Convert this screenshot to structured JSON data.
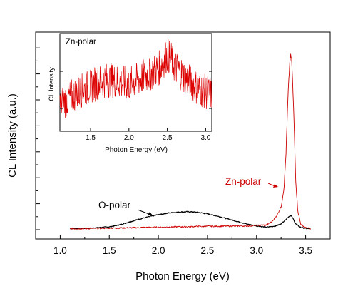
{
  "chart_data": [
    {
      "panel": "main",
      "type": "line",
      "xlabel": "Photon Energy (eV)",
      "ylabel": "CL Intensity (a.u.)",
      "xlim": [
        0.75,
        3.75
      ],
      "ylim": [
        0,
        1.0
      ],
      "x_ticks": [
        1.0,
        1.5,
        2.0,
        2.5,
        3.0,
        3.5
      ],
      "x_tick_labels": [
        "1.0",
        "1.5",
        "2.0",
        "2.5",
        "3.0",
        "3.5"
      ],
      "y_tick_labels_shown": false,
      "grid": false,
      "annotations": [
        {
          "text": "O-polar",
          "color": "#000000",
          "arrow_to": [
            2.2,
            0.055
          ]
        },
        {
          "text": "Zn-polar",
          "color": "#cc0000",
          "arrow_to": [
            3.25,
            0.22
          ]
        }
      ],
      "series": [
        {
          "name": "O-polar",
          "color": "#000000",
          "x": [
            1.1,
            1.3,
            1.5,
            1.6,
            1.7,
            1.8,
            1.9,
            2.0,
            2.1,
            2.2,
            2.3,
            2.4,
            2.5,
            2.6,
            2.7,
            2.8,
            2.9,
            3.0,
            3.1,
            3.2,
            3.25,
            3.3,
            3.33,
            3.35,
            3.37,
            3.4,
            3.45,
            3.5,
            3.55
          ],
          "y": [
            0.005,
            0.008,
            0.015,
            0.025,
            0.04,
            0.055,
            0.068,
            0.08,
            0.088,
            0.093,
            0.095,
            0.092,
            0.084,
            0.072,
            0.058,
            0.044,
            0.03,
            0.02,
            0.013,
            0.02,
            0.032,
            0.055,
            0.07,
            0.075,
            0.06,
            0.03,
            0.012,
            0.007,
            0.004
          ]
        },
        {
          "name": "Zn-polar",
          "color": "#cc0000",
          "x": [
            1.1,
            1.3,
            1.5,
            1.7,
            1.9,
            2.1,
            2.3,
            2.5,
            2.7,
            2.9,
            3.0,
            3.1,
            3.15,
            3.2,
            3.25,
            3.28,
            3.3,
            3.32,
            3.34,
            3.35,
            3.36,
            3.38,
            3.4,
            3.42,
            3.45,
            3.5,
            3.55
          ],
          "y": [
            0.005,
            0.006,
            0.008,
            0.01,
            0.012,
            0.014,
            0.016,
            0.018,
            0.019,
            0.02,
            0.022,
            0.025,
            0.04,
            0.07,
            0.12,
            0.22,
            0.4,
            0.7,
            0.9,
            0.92,
            0.88,
            0.6,
            0.25,
            0.1,
            0.03,
            0.01,
            0.005
          ]
        }
      ]
    },
    {
      "panel": "inset",
      "type": "line",
      "title": "Zn-polar",
      "xlabel": "Photon Energy (eV)",
      "ylabel": "CL Intensity",
      "xlim": [
        1.1,
        3.08
      ],
      "ylim": [
        0,
        1.0
      ],
      "x_ticks": [
        1.5,
        2.0,
        2.5,
        3.0
      ],
      "x_tick_labels": [
        "1.5",
        "2.0",
        "2.5",
        "3.0"
      ],
      "y_tick_labels_shown": false,
      "series": [
        {
          "name": "Zn-polar",
          "color": "#dd0000",
          "x": [
            1.1,
            1.2,
            1.3,
            1.4,
            1.5,
            1.6,
            1.7,
            1.8,
            1.9,
            2.0,
            2.1,
            2.2,
            2.3,
            2.4,
            2.45,
            2.5,
            2.55,
            2.6,
            2.7,
            2.8,
            2.9,
            3.0,
            3.08
          ],
          "y": [
            0.27,
            0.33,
            0.38,
            0.42,
            0.46,
            0.5,
            0.52,
            0.52,
            0.5,
            0.48,
            0.52,
            0.56,
            0.6,
            0.65,
            0.72,
            0.78,
            0.74,
            0.66,
            0.58,
            0.5,
            0.44,
            0.4,
            0.38
          ]
        }
      ]
    }
  ]
}
